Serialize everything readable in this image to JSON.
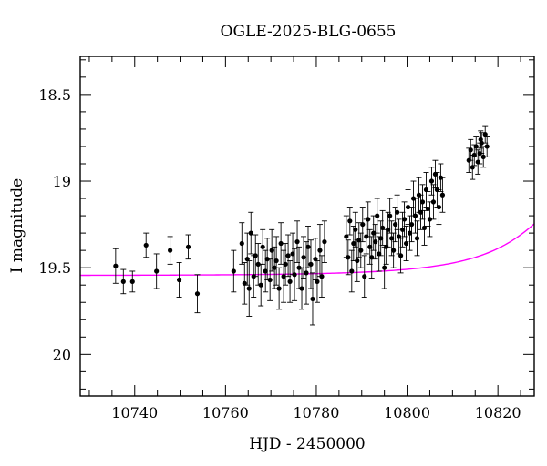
{
  "chart_data": {
    "type": "scatter",
    "title": "OGLE-2025-BLG-0655",
    "xlabel": "HJD - 2450000",
    "ylabel": "I magnitude",
    "xlim": [
      10728,
      10828
    ],
    "ylim": [
      20.24,
      18.28
    ],
    "y_inverted": true,
    "grid": false,
    "xticks": [
      {
        "value": 10740,
        "label": "10740"
      },
      {
        "value": 10760,
        "label": "10760"
      },
      {
        "value": 10780,
        "label": "10780"
      },
      {
        "value": 10800,
        "label": "10800"
      },
      {
        "value": 10820,
        "label": "10820"
      }
    ],
    "yticks": [
      {
        "value": 18.5,
        "label": "18.5"
      },
      {
        "value": 19.0,
        "label": "19"
      },
      {
        "value": 19.5,
        "label": "19.5"
      },
      {
        "value": 20.0,
        "label": "20"
      }
    ],
    "series": [
      {
        "kind": "points_with_errorbars",
        "color": "#000000",
        "points": [
          [
            10735.8,
            19.49,
            0.1
          ],
          [
            10737.5,
            19.58,
            0.07
          ],
          [
            10739.5,
            19.58,
            0.06
          ],
          [
            10742.5,
            19.37,
            0.07
          ],
          [
            10744.8,
            19.52,
            0.1
          ],
          [
            10747.8,
            19.4,
            0.08
          ],
          [
            10749.8,
            19.57,
            0.1
          ],
          [
            10751.8,
            19.38,
            0.07
          ],
          [
            10753.8,
            19.65,
            0.11
          ],
          [
            10761.8,
            19.52,
            0.12
          ],
          [
            10763.6,
            19.36,
            0.12
          ],
          [
            10764.2,
            19.59,
            0.12
          ],
          [
            10764.8,
            19.45,
            0.15
          ],
          [
            10765.2,
            19.62,
            0.16
          ],
          [
            10765.6,
            19.3,
            0.12
          ],
          [
            10766.2,
            19.55,
            0.12
          ],
          [
            10766.6,
            19.43,
            0.12
          ],
          [
            10767.2,
            19.48,
            0.12
          ],
          [
            10767.8,
            19.6,
            0.12
          ],
          [
            10768.2,
            19.38,
            0.1
          ],
          [
            10768.8,
            19.52,
            0.12
          ],
          [
            10769.2,
            19.45,
            0.12
          ],
          [
            10769.8,
            19.57,
            0.12
          ],
          [
            10770.2,
            19.4,
            0.12
          ],
          [
            10770.8,
            19.5,
            0.12
          ],
          [
            10771.2,
            19.46,
            0.14
          ],
          [
            10771.8,
            19.62,
            0.12
          ],
          [
            10772.2,
            19.36,
            0.12
          ],
          [
            10772.8,
            19.55,
            0.15
          ],
          [
            10773.2,
            19.48,
            0.12
          ],
          [
            10773.8,
            19.43,
            0.12
          ],
          [
            10774.2,
            19.58,
            0.12
          ],
          [
            10774.8,
            19.42,
            0.12
          ],
          [
            10775.2,
            19.54,
            0.15
          ],
          [
            10775.8,
            19.35,
            0.12
          ],
          [
            10776.2,
            19.5,
            0.12
          ],
          [
            10776.8,
            19.62,
            0.12
          ],
          [
            10777.2,
            19.44,
            0.12
          ],
          [
            10777.8,
            19.53,
            0.18
          ],
          [
            10778.2,
            19.38,
            0.12
          ],
          [
            10778.8,
            19.48,
            0.14
          ],
          [
            10779.2,
            19.68,
            0.15
          ],
          [
            10779.8,
            19.45,
            0.12
          ],
          [
            10780.2,
            19.58,
            0.12
          ],
          [
            10780.8,
            19.4,
            0.15
          ],
          [
            10781.2,
            19.55,
            0.12
          ],
          [
            10781.8,
            19.35,
            0.12
          ],
          [
            10786.6,
            19.32,
            0.12
          ],
          [
            10787.0,
            19.44,
            0.1
          ],
          [
            10787.4,
            19.23,
            0.08
          ],
          [
            10787.8,
            19.52,
            0.12
          ],
          [
            10788.2,
            19.36,
            0.1
          ],
          [
            10788.6,
            19.28,
            0.1
          ],
          [
            10789.0,
            19.46,
            0.12
          ],
          [
            10789.4,
            19.34,
            0.1
          ],
          [
            10789.8,
            19.4,
            0.1
          ],
          [
            10790.2,
            19.25,
            0.1
          ],
          [
            10790.6,
            19.55,
            0.12
          ],
          [
            10791.0,
            19.32,
            0.1
          ],
          [
            10791.4,
            19.22,
            0.1
          ],
          [
            10791.8,
            19.38,
            0.1
          ],
          [
            10792.2,
            19.44,
            0.12
          ],
          [
            10792.6,
            19.3,
            0.1
          ],
          [
            10793.0,
            19.35,
            0.1
          ],
          [
            10793.4,
            19.2,
            0.1
          ],
          [
            10793.8,
            19.42,
            0.1
          ],
          [
            10794.2,
            19.33,
            0.1
          ],
          [
            10794.6,
            19.27,
            0.1
          ],
          [
            10795.0,
            19.5,
            0.12
          ],
          [
            10795.4,
            19.38,
            0.1
          ],
          [
            10795.8,
            19.28,
            0.1
          ],
          [
            10796.2,
            19.2,
            0.1
          ],
          [
            10796.6,
            19.33,
            0.1
          ],
          [
            10797.0,
            19.4,
            0.1
          ],
          [
            10797.4,
            19.25,
            0.1
          ],
          [
            10797.8,
            19.18,
            0.1
          ],
          [
            10798.2,
            19.32,
            0.1
          ],
          [
            10798.6,
            19.43,
            0.1
          ],
          [
            10799.0,
            19.28,
            0.1
          ],
          [
            10799.4,
            19.22,
            0.1
          ],
          [
            10799.8,
            19.36,
            0.1
          ],
          [
            10800.2,
            19.15,
            0.1
          ],
          [
            10800.6,
            19.3,
            0.1
          ],
          [
            10801.0,
            19.25,
            0.1
          ],
          [
            10801.4,
            19.1,
            0.1
          ],
          [
            10801.8,
            19.2,
            0.1
          ],
          [
            10802.2,
            19.33,
            0.1
          ],
          [
            10802.6,
            19.08,
            0.1
          ],
          [
            10803.0,
            19.18,
            0.1
          ],
          [
            10803.4,
            19.12,
            0.1
          ],
          [
            10803.8,
            19.27,
            0.1
          ],
          [
            10804.2,
            19.05,
            0.1
          ],
          [
            10804.6,
            19.16,
            0.1
          ],
          [
            10805.0,
            19.22,
            0.1
          ],
          [
            10805.4,
            19.0,
            0.08
          ],
          [
            10805.8,
            19.12,
            0.1
          ],
          [
            10806.2,
            18.96,
            0.08
          ],
          [
            10806.6,
            19.05,
            0.1
          ],
          [
            10807.0,
            19.15,
            0.1
          ],
          [
            10807.4,
            18.98,
            0.08
          ],
          [
            10807.8,
            19.08,
            0.1
          ],
          [
            10813.6,
            18.88,
            0.07
          ],
          [
            10814.0,
            18.82,
            0.06
          ],
          [
            10814.4,
            18.92,
            0.07
          ],
          [
            10814.8,
            18.85,
            0.06
          ],
          [
            10815.2,
            18.8,
            0.06
          ],
          [
            10815.6,
            18.89,
            0.07
          ],
          [
            10816.0,
            18.84,
            0.06
          ],
          [
            10816.4,
            18.78,
            0.06
          ],
          [
            10816.8,
            18.86,
            0.06
          ],
          [
            10817.2,
            18.73,
            0.05
          ],
          [
            10817.6,
            18.8,
            0.06
          ],
          [
            10816.2,
            18.76,
            0.05
          ]
        ]
      },
      {
        "kind": "model_curve",
        "color": "#ff00ff",
        "model": {
          "t0": 10837,
          "tE": 24,
          "u0": 0.37,
          "fs": 0.29,
          "m_base": 19.545
        }
      }
    ]
  }
}
